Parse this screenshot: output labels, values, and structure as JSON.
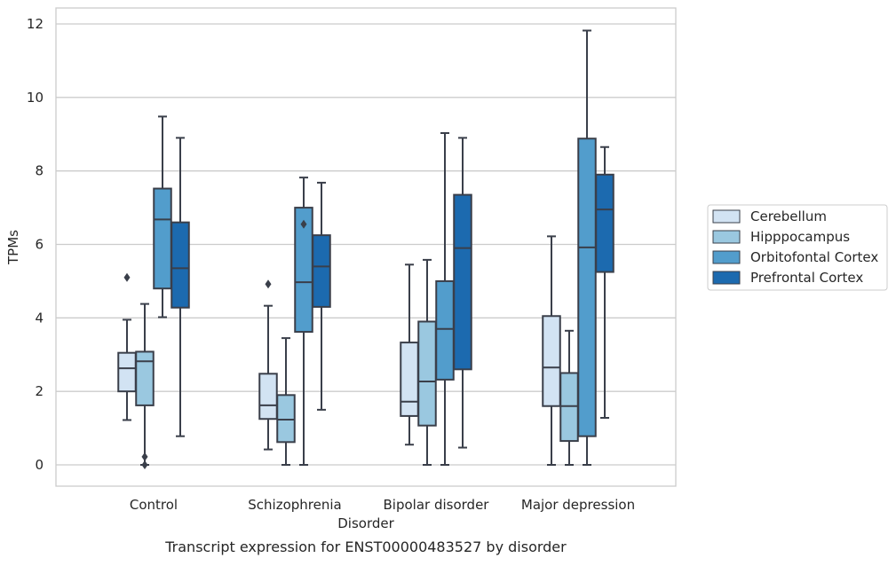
{
  "chart_data": {
    "type": "box",
    "title": "Transcript expression for ENST00000483527 by disorder",
    "xlabel": "Disorder",
    "ylabel": "TPMs",
    "ylim": [
      -0.55,
      12.4
    ],
    "yticks": [
      0,
      2,
      4,
      6,
      8,
      10,
      12
    ],
    "grid": true,
    "legend_position": "right",
    "categories": [
      "Control",
      "Schizophrenia",
      "Bipolar disorder",
      "Major depression"
    ],
    "series": [
      {
        "name": "Cerebellum",
        "color": "#d2e3f3",
        "boxes": [
          {
            "whisker_low": 1.22,
            "q1": 2.0,
            "median": 2.63,
            "q3": 3.05,
            "whisker_high": 3.95,
            "outliers": [
              5.1
            ]
          },
          {
            "whisker_low": 0.42,
            "q1": 1.25,
            "median": 1.62,
            "q3": 2.48,
            "whisker_high": 4.33,
            "outliers": [
              4.92
            ]
          },
          {
            "whisker_low": 0.55,
            "q1": 1.33,
            "median": 1.72,
            "q3": 3.33,
            "whisker_high": 5.45,
            "outliers": []
          },
          {
            "whisker_low": 0.0,
            "q1": 1.6,
            "median": 2.65,
            "q3": 4.05,
            "whisker_high": 6.22,
            "outliers": []
          }
        ]
      },
      {
        "name": "Hipppocampus",
        "color": "#9ac8e0",
        "boxes": [
          {
            "whisker_low": 0.0,
            "q1": 1.62,
            "median": 2.82,
            "q3": 3.08,
            "whisker_high": 4.38,
            "outliers": [
              0.22,
              0.0
            ]
          },
          {
            "whisker_low": 0.0,
            "q1": 0.62,
            "median": 1.23,
            "q3": 1.9,
            "whisker_high": 3.45,
            "outliers": []
          },
          {
            "whisker_low": 0.0,
            "q1": 1.07,
            "median": 2.27,
            "q3": 3.9,
            "whisker_high": 5.58,
            "outliers": []
          },
          {
            "whisker_low": 0.0,
            "q1": 0.65,
            "median": 1.6,
            "q3": 2.5,
            "whisker_high": 3.65,
            "outliers": []
          }
        ]
      },
      {
        "name": "Orbitofontal Cortex",
        "color": "#529dcc",
        "boxes": [
          {
            "whisker_low": 4.02,
            "q1": 4.8,
            "median": 6.68,
            "q3": 7.52,
            "whisker_high": 9.48,
            "outliers": []
          },
          {
            "whisker_low": 0.0,
            "q1": 3.62,
            "median": 4.97,
            "q3": 7.0,
            "whisker_high": 7.82,
            "outliers": [
              6.55
            ]
          },
          {
            "whisker_low": 0.0,
            "q1": 2.32,
            "median": 3.7,
            "q3": 5.0,
            "whisker_high": 9.03,
            "outliers": []
          },
          {
            "whisker_low": 0.0,
            "q1": 0.78,
            "median": 5.92,
            "q3": 8.88,
            "whisker_high": 11.82,
            "outliers": []
          }
        ]
      },
      {
        "name": "Prefrontal Cortex",
        "color": "#1c6aaf",
        "boxes": [
          {
            "whisker_low": 0.78,
            "q1": 4.28,
            "median": 5.35,
            "q3": 6.6,
            "whisker_high": 8.9,
            "outliers": []
          },
          {
            "whisker_low": 1.5,
            "q1": 4.3,
            "median": 5.4,
            "q3": 6.25,
            "whisker_high": 7.68,
            "outliers": []
          },
          {
            "whisker_low": 0.47,
            "q1": 2.6,
            "median": 5.9,
            "q3": 7.35,
            "whisker_high": 8.9,
            "outliers": []
          },
          {
            "whisker_low": 1.28,
            "q1": 5.25,
            "median": 6.95,
            "q3": 7.9,
            "whisker_high": 8.65,
            "outliers": []
          }
        ]
      }
    ]
  }
}
